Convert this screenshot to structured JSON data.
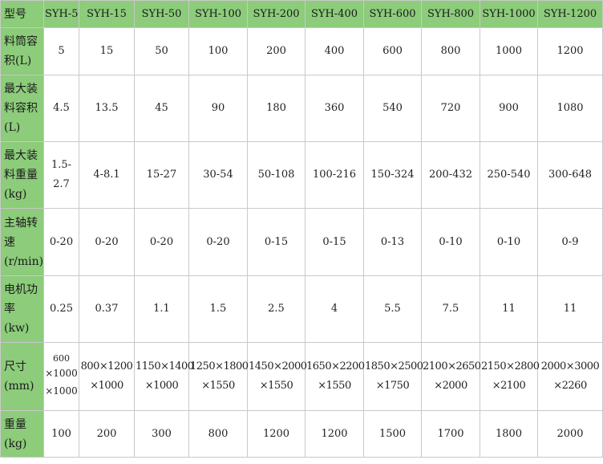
{
  "columns": [
    "型号",
    "SYH-5",
    "SYH-15",
    "SYH-50",
    "SYH-100",
    "SYH-200",
    "SYH-400",
    "SYH-600",
    "SYH-800",
    "SYH-1000",
    "SYH-1200"
  ],
  "rows": [
    {
      "label": "料筒容\n积(L)",
      "values": [
        "5",
        "15",
        "50",
        "100",
        "200",
        "400",
        "600",
        "800",
        "1000",
        "1200"
      ]
    },
    {
      "label": "最大装\n料容积\n(L)",
      "values": [
        "4.5",
        "13.5",
        "45",
        "90",
        "180",
        "360",
        "540",
        "720",
        "900",
        "1080"
      ]
    },
    {
      "label": "最大装\n料重量\n(kg)",
      "values": [
        "1.5-\n2.7",
        "4-8.1",
        "15-27",
        "30-54",
        "50-108",
        "100-216",
        "150-324",
        "200-432",
        "250-540",
        "300-648"
      ]
    },
    {
      "label": "主轴转\n速\n(r/min)",
      "values": [
        "0-20",
        "0-20",
        "0-20",
        "0-20",
        "0-15",
        "0-15",
        "0-13",
        "0-10",
        "0-10",
        "0-9"
      ]
    },
    {
      "label": "电机功\n率\n(kw)",
      "values": [
        "0.25",
        "0.37",
        "1.1",
        "1.5",
        "2.5",
        "4",
        "5.5",
        "7.5",
        "11",
        "11"
      ]
    },
    {
      "label": "尺寸\n(mm)",
      "values": [
        "600",
        "800×1200\n×1000",
        "1150×1400\n×1000",
        "1250×1800\n×1550",
        "1450×2000\n×1550",
        "1650×2200\n×1550",
        "1850×2500\n×1750",
        "2100×2650\n×2000",
        "2150×2800\n×2100",
        "2000×3000\n×2260"
      ],
      "first_cell_lines": [
        "×1000",
        "×1000"
      ]
    },
    {
      "label": "重量\n(kg)",
      "values": [
        "100",
        "200",
        "300",
        "800",
        "1200",
        "1200",
        "1500",
        "1700",
        "1800",
        "2000"
      ]
    }
  ],
  "colors": {
    "header_bg": "#8ccc7a",
    "border": "#c9c9c9",
    "text": "#222222"
  }
}
